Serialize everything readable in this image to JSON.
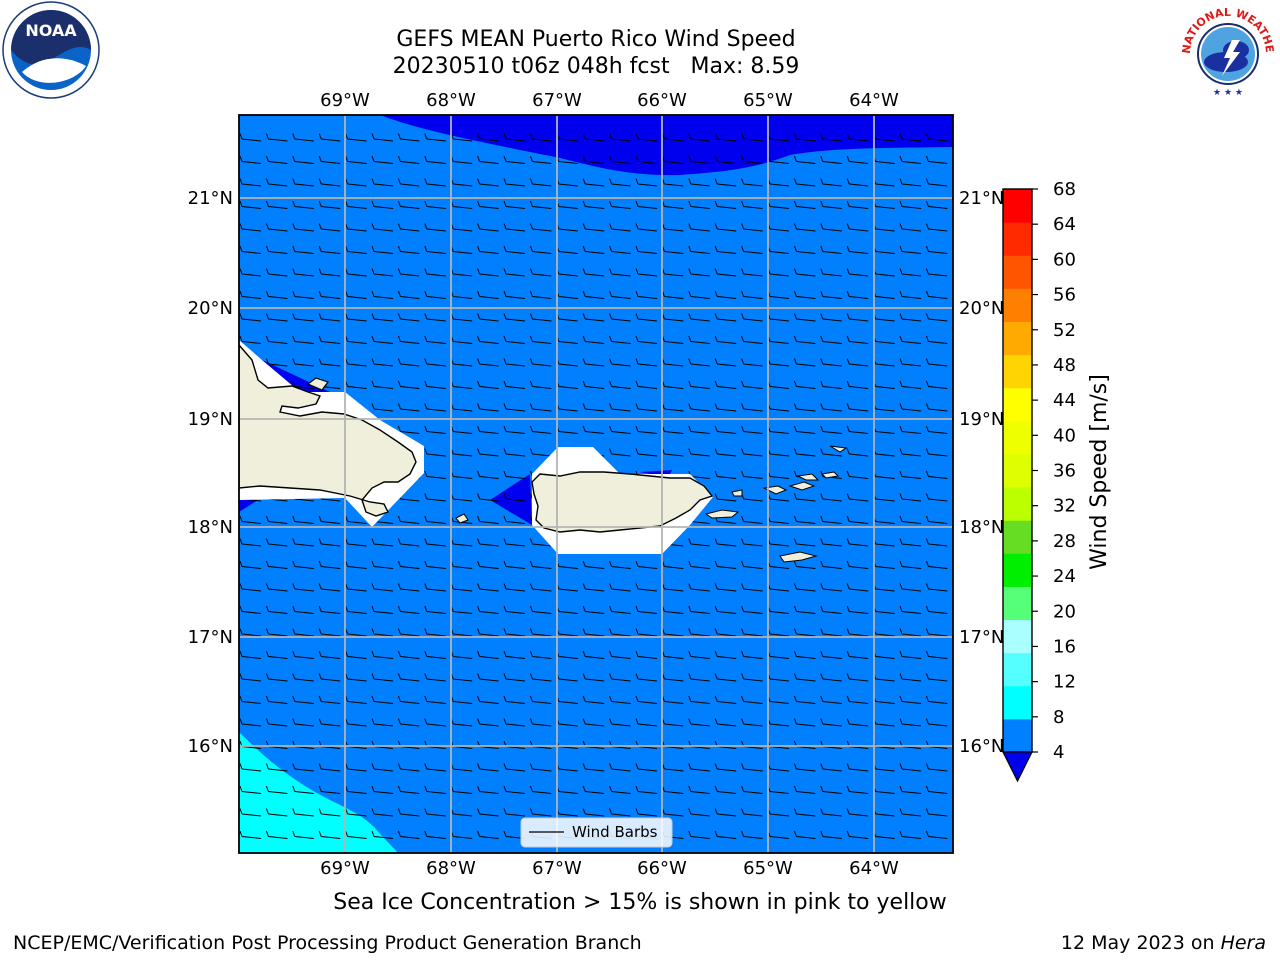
{
  "title_line1": "GEFS MEAN Puerto Rico Wind Speed",
  "title_line2": "20230510 t06z 048h fcst   Max: 8.59",
  "caption": "Sea Ice Concentration > 15% is shown in pink to yellow",
  "footer_left": "NCEP/EMC/Verification Post Processing Product Generation Branch",
  "footer_date": "12 May 2023 on ",
  "footer_host": "Hera",
  "logos": {
    "noaa": "NOAA",
    "nws": "NATIONAL WEATHER SERVICE"
  },
  "legend_label": "Wind Barbs",
  "colorbar": {
    "label": "Wind Speed [m/s]",
    "ticks": [
      "68",
      "64",
      "60",
      "56",
      "52",
      "48",
      "44",
      "40",
      "36",
      "32",
      "28",
      "24",
      "20",
      "16",
      "12",
      "8",
      "4"
    ],
    "colors": [
      "#ff0000",
      "#ff2a00",
      "#ff5500",
      "#ff8000",
      "#ffaa00",
      "#ffd400",
      "#ffff00",
      "#eeff00",
      "#ddff00",
      "#bbff00",
      "#66dd22",
      "#00ee00",
      "#55ff77",
      "#aaffff",
      "#55ffff",
      "#00ffff",
      "#0080ff"
    ],
    "under_color": "#0000ee"
  },
  "chart_data": {
    "type": "heatmap",
    "title": "GEFS MEAN Puerto Rico Wind Speed",
    "subtitle": "20230510 t06z 048h fcst   Max: 8.59",
    "variable_label": "Wind Speed [m/s]",
    "max": 8.59,
    "lon_ticks": [
      "69°W",
      "68°W",
      "67°W",
      "66°W",
      "65°W",
      "64°W"
    ],
    "lat_ticks": [
      "21°N",
      "20°N",
      "19°N",
      "18°N",
      "17°N",
      "16°N"
    ],
    "lon_values": [
      -69,
      -68,
      -67,
      -66,
      -65,
      -64
    ],
    "lat_values": [
      21,
      20,
      19,
      18,
      17,
      16
    ],
    "lon_range": [
      -70,
      -63.3
    ],
    "lat_range": [
      15,
      21.75
    ],
    "dominant_range_m_s": [
      4,
      8
    ],
    "grid": true,
    "legend_position": "bottom-center"
  }
}
